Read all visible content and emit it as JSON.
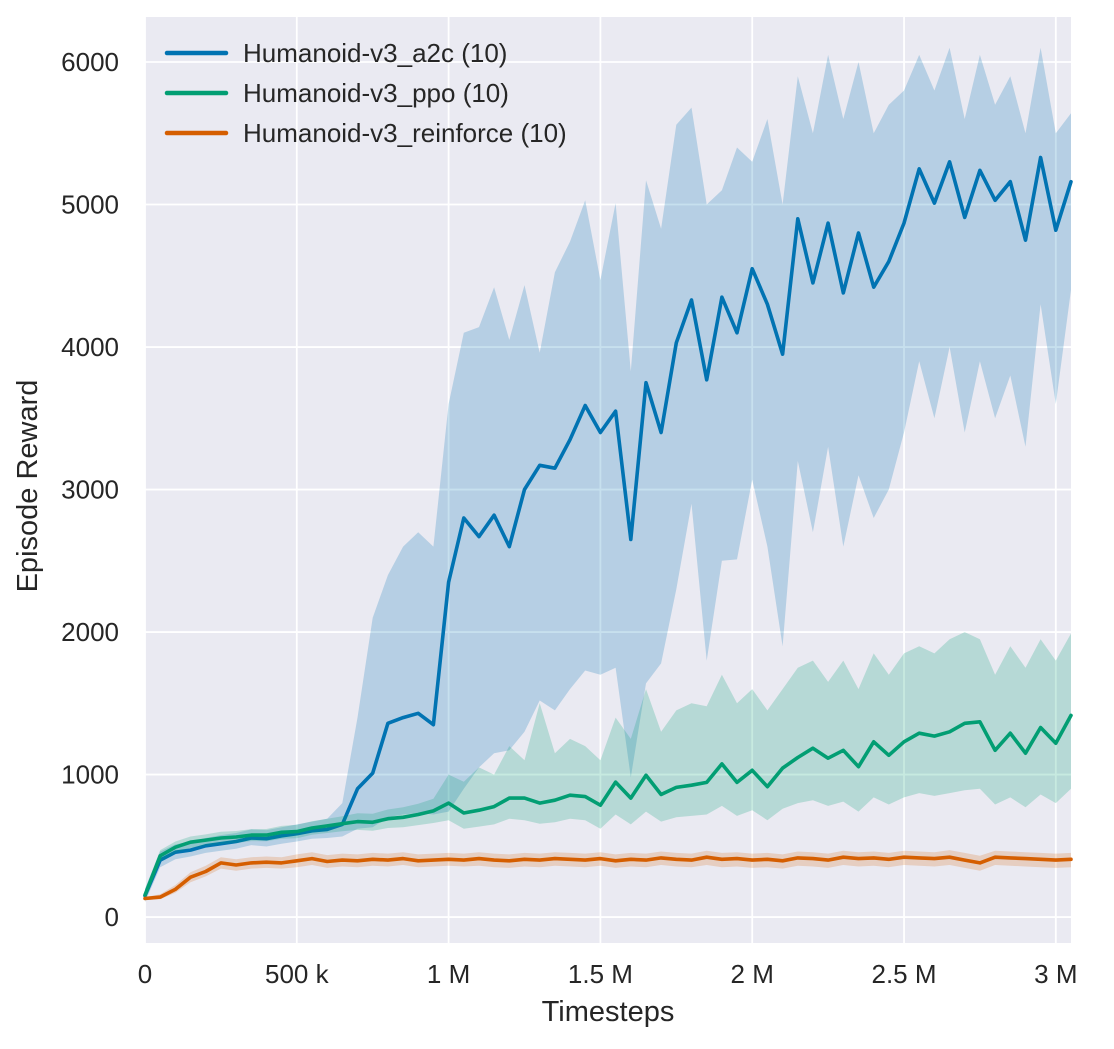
{
  "figure": {
    "background": "#ffffff",
    "plot_background": "#eaeaf2",
    "grid_color": "#ffffff",
    "text_color": "#262626"
  },
  "chart_data": {
    "type": "line",
    "title": "",
    "xlabel": "Timesteps",
    "ylabel": "Episode Reward",
    "grid": true,
    "legend_position": "upper left",
    "xlim": [
      0,
      3050000
    ],
    "ylim": [
      -182,
      6316
    ],
    "x_ticks": [
      {
        "value": 0,
        "label": "0"
      },
      {
        "value": 500000,
        "label": "500 k"
      },
      {
        "value": 1000000,
        "label": "1 M"
      },
      {
        "value": 1500000,
        "label": "1.5 M"
      },
      {
        "value": 2000000,
        "label": "2 M"
      },
      {
        "value": 2500000,
        "label": "2.5 M"
      },
      {
        "value": 3000000,
        "label": "3 M"
      }
    ],
    "y_ticks": [
      {
        "value": 0,
        "label": "0"
      },
      {
        "value": 1000,
        "label": "1000"
      },
      {
        "value": 2000,
        "label": "2000"
      },
      {
        "value": 3000,
        "label": "3000"
      },
      {
        "value": 4000,
        "label": "4000"
      },
      {
        "value": 5000,
        "label": "5000"
      },
      {
        "value": 6000,
        "label": "6000"
      }
    ],
    "x": [
      0,
      50000,
      100000,
      150000,
      200000,
      250000,
      300000,
      350000,
      400000,
      450000,
      500000,
      550000,
      600000,
      650000,
      700000,
      750000,
      800000,
      850000,
      900000,
      950000,
      1000000,
      1050000,
      1100000,
      1150000,
      1200000,
      1250000,
      1300000,
      1350000,
      1400000,
      1450000,
      1500000,
      1550000,
      1600000,
      1650000,
      1700000,
      1750000,
      1800000,
      1850000,
      1900000,
      1950000,
      2000000,
      2050000,
      2100000,
      2150000,
      2200000,
      2250000,
      2300000,
      2350000,
      2400000,
      2450000,
      2500000,
      2550000,
      2600000,
      2650000,
      2700000,
      2750000,
      2800000,
      2850000,
      2900000,
      2950000,
      3000000,
      3050000
    ],
    "series": [
      {
        "name": "Humanoid-v3_a2c (10)",
        "color": "#0173b2",
        "band_opacity": 0.22,
        "mean": [
          150,
          400,
          455,
          470,
          500,
          515,
          530,
          555,
          550,
          570,
          585,
          605,
          615,
          650,
          900,
          1010,
          1360,
          1400,
          1430,
          1350,
          2350,
          2800,
          2670,
          2820,
          2600,
          3000,
          3170,
          3150,
          3350,
          3590,
          3400,
          3550,
          2650,
          3750,
          3400,
          4030,
          4330,
          3770,
          4350,
          4100,
          4550,
          4300,
          3950,
          4900,
          4450,
          4870,
          4380,
          4800,
          4420,
          4600,
          4870,
          5250,
          5010,
          5300,
          4910,
          5240,
          5030,
          5160,
          4750,
          5330,
          4820,
          5160
        ],
        "lower": [
          105,
          350,
          405,
          425,
          450,
          465,
          480,
          505,
          495,
          515,
          530,
          550,
          555,
          565,
          620,
          630,
          700,
          720,
          730,
          720,
          740,
          900,
          1050,
          1150,
          1170,
          1300,
          1520,
          1450,
          1600,
          1730,
          1700,
          1750,
          980,
          1640,
          1780,
          2300,
          2900,
          1800,
          2500,
          2510,
          3070,
          2600,
          1900,
          3200,
          2700,
          3300,
          2600,
          3100,
          2800,
          3000,
          3400,
          3900,
          3500,
          4000,
          3400,
          3900,
          3500,
          3800,
          3300,
          4300,
          3600,
          4400
        ],
        "upper": [
          200,
          460,
          510,
          530,
          555,
          575,
          590,
          615,
          610,
          630,
          650,
          670,
          690,
          800,
          1400,
          2100,
          2400,
          2600,
          2700,
          2600,
          3600,
          4100,
          4140,
          4420,
          4050,
          4435,
          3960,
          4525,
          4740,
          5030,
          4470,
          5010,
          3830,
          5170,
          4830,
          5560,
          5680,
          5000,
          5100,
          5400,
          5300,
          5600,
          5000,
          5900,
          5500,
          6050,
          5600,
          6000,
          5500,
          5700,
          5800,
          6050,
          5800,
          6100,
          5600,
          6050,
          5700,
          5900,
          5500,
          6100,
          5500,
          5640
        ]
      },
      {
        "name": "Humanoid-v3_ppo (10)",
        "color": "#029e73",
        "band_opacity": 0.22,
        "mean": [
          155,
          430,
          490,
          525,
          540,
          555,
          562,
          575,
          575,
          595,
          600,
          625,
          640,
          655,
          670,
          665,
          690,
          700,
          720,
          745,
          800,
          730,
          750,
          775,
          835,
          835,
          800,
          820,
          855,
          845,
          785,
          947,
          835,
          995,
          860,
          910,
          925,
          945,
          1075,
          945,
          1030,
          915,
          1045,
          1120,
          1185,
          1115,
          1170,
          1055,
          1230,
          1135,
          1230,
          1290,
          1270,
          1300,
          1360,
          1370,
          1170,
          1290,
          1150,
          1330,
          1220,
          1415
        ],
        "lower": [
          115,
          390,
          450,
          485,
          500,
          512,
          520,
          533,
          532,
          550,
          553,
          577,
          590,
          602,
          612,
          605,
          625,
          630,
          645,
          660,
          680,
          620,
          635,
          650,
          690,
          680,
          655,
          665,
          690,
          680,
          620,
          720,
          650,
          740,
          670,
          700,
          710,
          720,
          780,
          710,
          750,
          680,
          760,
          800,
          820,
          780,
          810,
          740,
          840,
          790,
          840,
          870,
          850,
          870,
          890,
          900,
          790,
          840,
          770,
          860,
          800,
          900
        ],
        "upper": [
          195,
          470,
          530,
          565,
          580,
          598,
          604,
          617,
          618,
          640,
          647,
          673,
          690,
          708,
          728,
          725,
          755,
          770,
          795,
          830,
          1000,
          950,
          1050,
          1000,
          1200,
          1100,
          1500,
          1150,
          1250,
          1200,
          1100,
          1400,
          1250,
          1600,
          1300,
          1450,
          1500,
          1480,
          1700,
          1500,
          1600,
          1450,
          1600,
          1750,
          1800,
          1650,
          1800,
          1600,
          1850,
          1700,
          1850,
          1900,
          1850,
          1950,
          2000,
          1950,
          1700,
          1900,
          1750,
          1950,
          1800,
          1990
        ]
      },
      {
        "name": "Humanoid-v3_reinforce (10)",
        "color": "#d55e00",
        "band_opacity": 0.2,
        "mean": [
          130,
          140,
          195,
          280,
          320,
          380,
          365,
          380,
          385,
          380,
          395,
          410,
          390,
          400,
          395,
          405,
          400,
          410,
          395,
          400,
          405,
          400,
          410,
          400,
          395,
          405,
          400,
          410,
          405,
          400,
          410,
          395,
          405,
          400,
          415,
          405,
          400,
          420,
          405,
          410,
          400,
          405,
          395,
          415,
          410,
          400,
          420,
          410,
          415,
          405,
          420,
          415,
          410,
          420,
          400,
          380,
          420,
          415,
          410,
          405,
          400,
          405
        ],
        "lower": [
          120,
          125,
          170,
          245,
          285,
          340,
          325,
          340,
          345,
          340,
          350,
          365,
          345,
          355,
          350,
          360,
          355,
          365,
          350,
          355,
          360,
          355,
          360,
          350,
          345,
          355,
          350,
          360,
          355,
          350,
          360,
          345,
          355,
          350,
          365,
          355,
          350,
          365,
          350,
          355,
          345,
          350,
          340,
          360,
          355,
          345,
          365,
          355,
          360,
          350,
          365,
          360,
          355,
          365,
          345,
          325,
          365,
          360,
          355,
          350,
          345,
          350
        ],
        "upper": [
          140,
          160,
          225,
          315,
          360,
          420,
          405,
          420,
          425,
          420,
          440,
          455,
          435,
          445,
          440,
          450,
          445,
          455,
          440,
          445,
          450,
          445,
          455,
          445,
          440,
          450,
          445,
          455,
          450,
          445,
          455,
          440,
          450,
          445,
          460,
          450,
          445,
          465,
          450,
          455,
          445,
          450,
          440,
          460,
          455,
          445,
          465,
          455,
          460,
          450,
          465,
          460,
          455,
          470,
          450,
          430,
          465,
          460,
          455,
          450,
          445,
          450
        ]
      }
    ]
  }
}
